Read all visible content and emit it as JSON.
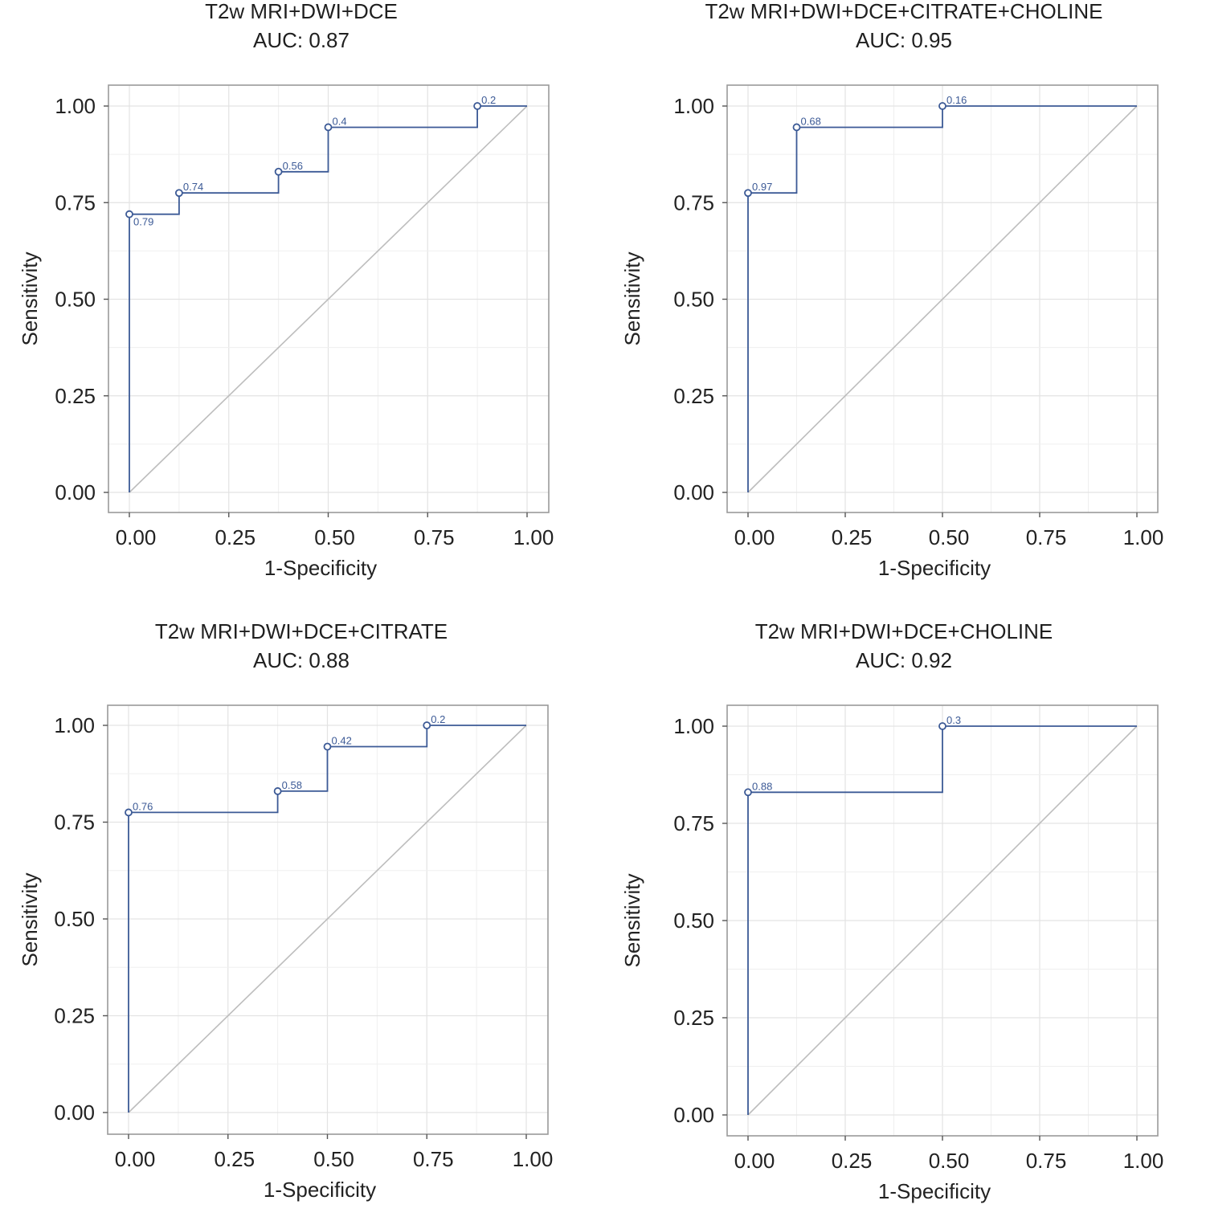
{
  "chart_data": [
    {
      "type": "line",
      "title": "T2w MRI+DWI+DCE",
      "subtitle": "AUC: 0.87",
      "xlabel": "1-Specificity",
      "ylabel": "Sensitivity",
      "xlim": [
        0,
        1
      ],
      "ylim": [
        0,
        1
      ],
      "xticks": [
        "0.00",
        "0.25",
        "0.50",
        "0.75",
        "1.00"
      ],
      "yticks": [
        "0.00",
        "0.25",
        "0.50",
        "0.75",
        "1.00"
      ],
      "grid": true,
      "step": [
        [
          0,
          0
        ],
        [
          0,
          0.72
        ],
        [
          0.125,
          0.72
        ],
        [
          0.125,
          0.775
        ],
        [
          0.375,
          0.775
        ],
        [
          0.375,
          0.83
        ],
        [
          0.5,
          0.83
        ],
        [
          0.5,
          0.945
        ],
        [
          0.875,
          0.945
        ],
        [
          0.875,
          1
        ],
        [
          1,
          1
        ]
      ],
      "points": [
        {
          "x": 0,
          "y": 0.72,
          "label": "0.79"
        },
        {
          "x": 0.125,
          "y": 0.775,
          "label": "0.74"
        },
        {
          "x": 0.375,
          "y": 0.83,
          "label": "0.56"
        },
        {
          "x": 0.5,
          "y": 0.945,
          "label": "0.4"
        },
        {
          "x": 0.875,
          "y": 1,
          "label": "0.2"
        }
      ],
      "reference_line": [
        [
          0,
          0
        ],
        [
          1,
          1
        ]
      ],
      "colors": {
        "curve": "#3c5a96",
        "diagonal": "#bdbdbd",
        "grid": "#e3e3e3",
        "frame": "#9a9a9a"
      }
    },
    {
      "type": "line",
      "title": "T2w MRI+DWI+DCE+CITRATE+CHOLINE",
      "subtitle": "AUC: 0.95",
      "xlabel": "1-Specificity",
      "ylabel": "Sensitivity",
      "xlim": [
        0,
        1
      ],
      "ylim": [
        0,
        1
      ],
      "xticks": [
        "0.00",
        "0.25",
        "0.50",
        "0.75",
        "1.00"
      ],
      "yticks": [
        "0.00",
        "0.25",
        "0.50",
        "0.75",
        "1.00"
      ],
      "grid": true,
      "step": [
        [
          0,
          0
        ],
        [
          0,
          0.775
        ],
        [
          0.125,
          0.775
        ],
        [
          0.125,
          0.945
        ],
        [
          0.5,
          0.945
        ],
        [
          0.5,
          1
        ],
        [
          1,
          1
        ]
      ],
      "points": [
        {
          "x": 0,
          "y": 0.775,
          "label": "0.97"
        },
        {
          "x": 0.125,
          "y": 0.945,
          "label": "0.68"
        },
        {
          "x": 0.5,
          "y": 1,
          "label": "0.16"
        }
      ],
      "reference_line": [
        [
          0,
          0
        ],
        [
          1,
          1
        ]
      ],
      "colors": {
        "curve": "#3c5a96",
        "diagonal": "#bdbdbd",
        "grid": "#e3e3e3",
        "frame": "#9a9a9a"
      }
    },
    {
      "type": "line",
      "title": "T2w MRI+DWI+DCE+CITRATE",
      "subtitle": "AUC: 0.88",
      "xlabel": "1-Specificity",
      "ylabel": "Sensitivity",
      "xlim": [
        0,
        1
      ],
      "ylim": [
        0,
        1
      ],
      "xticks": [
        "0.00",
        "0.25",
        "0.50",
        "0.75",
        "1.00"
      ],
      "yticks": [
        "0.00",
        "0.25",
        "0.50",
        "0.75",
        "1.00"
      ],
      "grid": true,
      "step": [
        [
          0,
          0
        ],
        [
          0,
          0.775
        ],
        [
          0.375,
          0.775
        ],
        [
          0.375,
          0.83
        ],
        [
          0.5,
          0.83
        ],
        [
          0.5,
          0.945
        ],
        [
          0.75,
          0.945
        ],
        [
          0.75,
          1
        ],
        [
          1,
          1
        ]
      ],
      "points": [
        {
          "x": 0,
          "y": 0.775,
          "label": "0.76"
        },
        {
          "x": 0.375,
          "y": 0.83,
          "label": "0.58"
        },
        {
          "x": 0.5,
          "y": 0.945,
          "label": "0.42"
        },
        {
          "x": 0.75,
          "y": 1,
          "label": "0.2"
        }
      ],
      "reference_line": [
        [
          0,
          0
        ],
        [
          1,
          1
        ]
      ],
      "colors": {
        "curve": "#3c5a96",
        "diagonal": "#bdbdbd",
        "grid": "#e3e3e3",
        "frame": "#9a9a9a"
      }
    },
    {
      "type": "line",
      "title": "T2w MRI+DWI+DCE+CHOLINE",
      "subtitle": "AUC: 0.92",
      "xlabel": "1-Specificity",
      "ylabel": "Sensitivity",
      "xlim": [
        0,
        1
      ],
      "ylim": [
        0,
        1
      ],
      "xticks": [
        "0.00",
        "0.25",
        "0.50",
        "0.75",
        "1.00"
      ],
      "yticks": [
        "0.00",
        "0.25",
        "0.50",
        "0.75",
        "1.00"
      ],
      "grid": true,
      "step": [
        [
          0,
          0
        ],
        [
          0,
          0.83
        ],
        [
          0.5,
          0.83
        ],
        [
          0.5,
          1
        ],
        [
          1,
          1
        ]
      ],
      "points": [
        {
          "x": 0,
          "y": 0.83,
          "label": "0.88"
        },
        {
          "x": 0.5,
          "y": 1,
          "label": "0.3"
        }
      ],
      "reference_line": [
        [
          0,
          0
        ],
        [
          1,
          1
        ]
      ],
      "colors": {
        "curve": "#3c5a96",
        "diagonal": "#bdbdbd",
        "grid": "#e3e3e3",
        "frame": "#9a9a9a"
      }
    }
  ]
}
